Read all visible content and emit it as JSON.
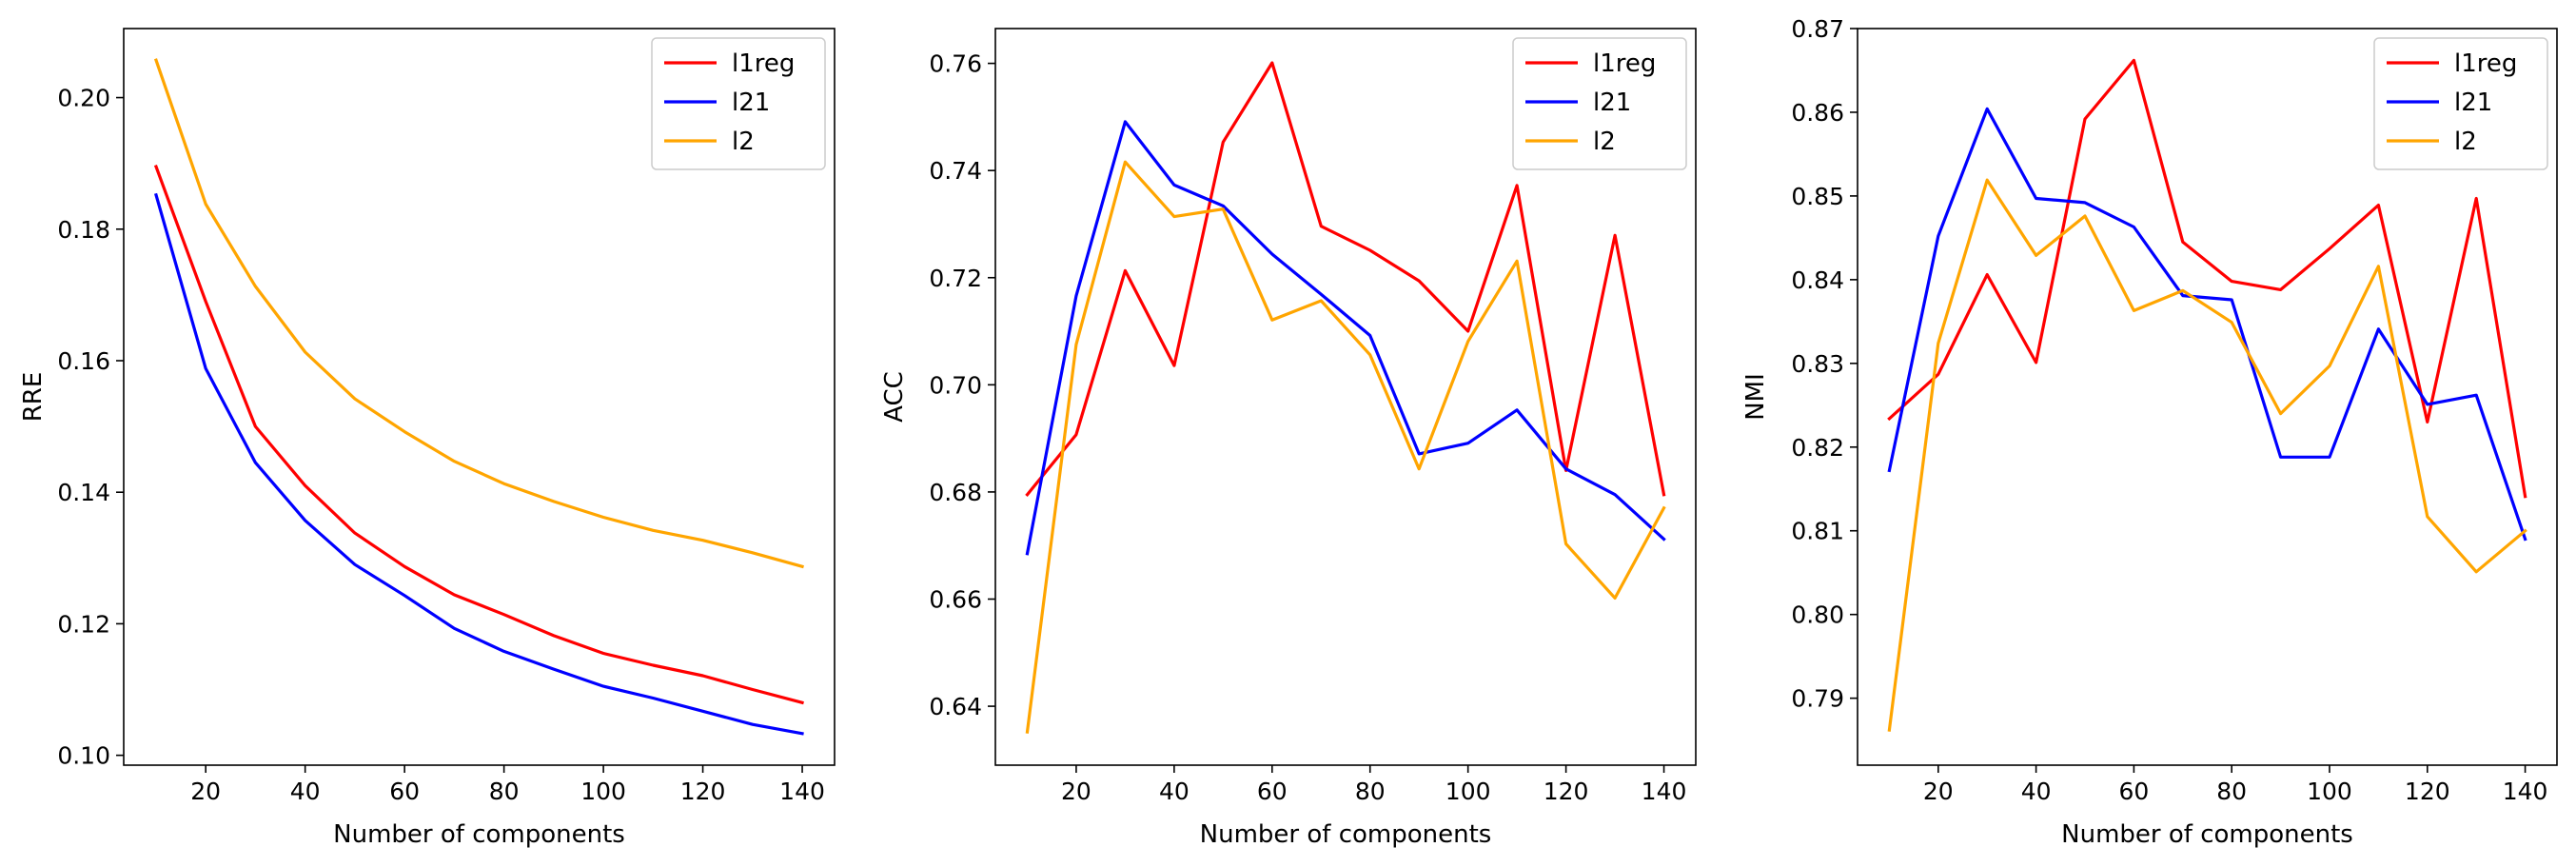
{
  "chart_data": [
    {
      "type": "line",
      "xlabel": "Number of components",
      "ylabel": "RRE",
      "x": [
        10,
        20,
        30,
        40,
        50,
        60,
        70,
        80,
        90,
        100,
        110,
        120,
        130,
        140
      ],
      "xticks": [
        20,
        40,
        60,
        80,
        100,
        120,
        140
      ],
      "xlim": [
        3.5,
        146.5
      ],
      "ylim": [
        0.0985,
        0.2105
      ],
      "yticks": [
        0.1,
        0.12,
        0.14,
        0.16,
        0.18,
        0.2
      ],
      "ytick_labels": [
        "0.10",
        "0.12",
        "0.14",
        "0.16",
        "0.18",
        "0.20"
      ],
      "legend_position": "top-right",
      "series": [
        {
          "name": "l1reg",
          "color": "#ff0000",
          "values": [
            0.1895,
            0.169,
            0.15,
            0.141,
            0.1338,
            0.1287,
            0.1244,
            0.1214,
            0.1182,
            0.1155,
            0.1137,
            0.1121,
            0.11,
            0.108
          ]
        },
        {
          "name": "l21",
          "color": "#0000ff",
          "values": [
            0.1852,
            0.1588,
            0.1445,
            0.1357,
            0.129,
            0.1243,
            0.1193,
            0.1158,
            0.1131,
            0.1105,
            0.1087,
            0.1067,
            0.1047,
            0.1033
          ]
        },
        {
          "name": "l2",
          "color": "#ffa500",
          "values": [
            0.2057,
            0.1838,
            0.1713,
            0.1613,
            0.1542,
            0.1492,
            0.1447,
            0.1413,
            0.1386,
            0.1362,
            0.1342,
            0.1327,
            0.1308,
            0.1287
          ]
        }
      ]
    },
    {
      "type": "line",
      "xlabel": "Number of components",
      "ylabel": "ACC",
      "x": [
        10,
        20,
        30,
        40,
        50,
        60,
        70,
        80,
        90,
        100,
        110,
        120,
        130,
        140
      ],
      "xticks": [
        20,
        40,
        60,
        80,
        100,
        120,
        140
      ],
      "xlim": [
        3.5,
        146.5
      ],
      "ylim": [
        0.629,
        0.7665
      ],
      "yticks": [
        0.64,
        0.66,
        0.68,
        0.7,
        0.72,
        0.74,
        0.76
      ],
      "ytick_labels": [
        "0.64",
        "0.66",
        "0.68",
        "0.70",
        "0.72",
        "0.74",
        "0.76"
      ],
      "legend_position": "top-right",
      "series": [
        {
          "name": "l1reg",
          "color": "#ff0000",
          "values": [
            0.6795,
            0.6907,
            0.7213,
            0.7036,
            0.7453,
            0.7601,
            0.7296,
            0.7251,
            0.7194,
            0.71,
            0.7372,
            0.684,
            0.7279,
            0.6795
          ]
        },
        {
          "name": "l21",
          "color": "#0000ff",
          "values": [
            0.6685,
            0.7166,
            0.7491,
            0.7373,
            0.7334,
            0.7244,
            0.7169,
            0.7092,
            0.6871,
            0.6891,
            0.6953,
            0.6843,
            0.6795,
            0.6712
          ]
        },
        {
          "name": "l2",
          "color": "#ffa500",
          "values": [
            0.6352,
            0.7075,
            0.7416,
            0.7314,
            0.7328,
            0.7121,
            0.7157,
            0.7056,
            0.6843,
            0.7081,
            0.7231,
            0.6703,
            0.6602,
            0.677
          ]
        }
      ]
    },
    {
      "type": "line",
      "xlabel": "Number of components",
      "ylabel": "NMI",
      "x": [
        10,
        20,
        30,
        40,
        50,
        60,
        70,
        80,
        90,
        100,
        110,
        120,
        130,
        140
      ],
      "xticks": [
        20,
        40,
        60,
        80,
        100,
        120,
        140
      ],
      "xlim": [
        3.5,
        146.5
      ],
      "ylim": [
        0.782,
        0.87
      ],
      "yticks": [
        0.79,
        0.8,
        0.81,
        0.82,
        0.83,
        0.84,
        0.85,
        0.86,
        0.87
      ],
      "ytick_labels": [
        "0.79",
        "0.80",
        "0.81",
        "0.82",
        "0.83",
        "0.84",
        "0.85",
        "0.86",
        "0.87"
      ],
      "legend_position": "top-right",
      "series": [
        {
          "name": "l1reg",
          "color": "#ff0000",
          "values": [
            0.8234,
            0.8287,
            0.8406,
            0.8301,
            0.8592,
            0.8662,
            0.8445,
            0.8398,
            0.8388,
            0.8437,
            0.8489,
            0.823,
            0.8497,
            0.8141
          ]
        },
        {
          "name": "l21",
          "color": "#0000ff",
          "values": [
            0.8172,
            0.8452,
            0.8604,
            0.8497,
            0.8492,
            0.8463,
            0.8381,
            0.8376,
            0.8188,
            0.8188,
            0.8341,
            0.8251,
            0.8262,
            0.809
          ]
        },
        {
          "name": "l2",
          "color": "#ffa500",
          "values": [
            0.7862,
            0.8324,
            0.8519,
            0.8429,
            0.8476,
            0.8363,
            0.8387,
            0.8349,
            0.824,
            0.8297,
            0.8416,
            0.8117,
            0.8051,
            0.81
          ]
        }
      ]
    }
  ]
}
